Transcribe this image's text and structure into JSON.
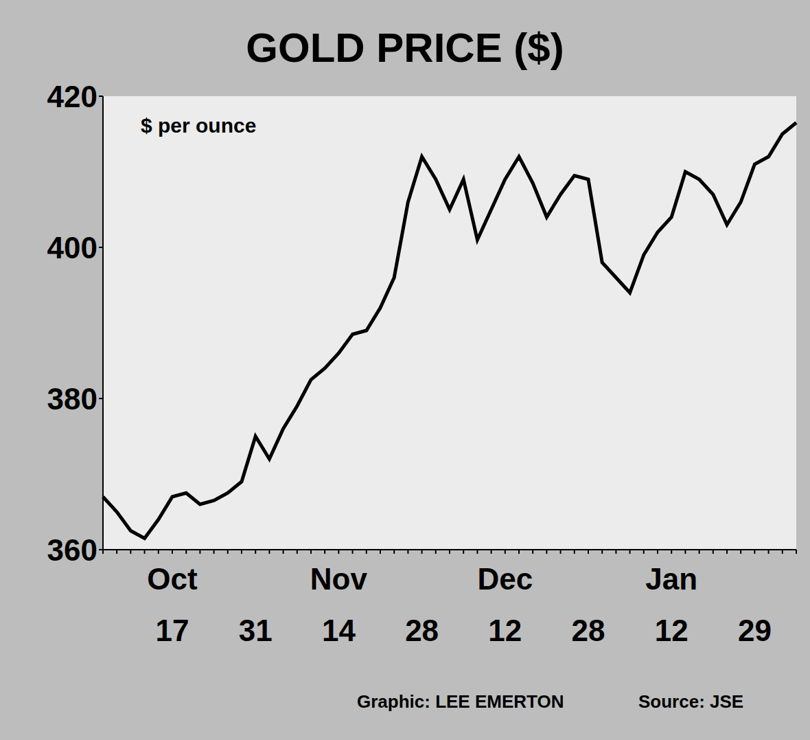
{
  "chart_data": {
    "type": "line",
    "title": "GOLD PRICE ($)",
    "ylabel": "$ per ounce",
    "credit": "Graphic: LEE EMERTON",
    "source": "Source: JSE",
    "categories": [
      null,
      null,
      null,
      null,
      null,
      "Oct 17",
      null,
      null,
      null,
      null,
      null,
      "31",
      null,
      null,
      null,
      null,
      null,
      "Nov 14",
      null,
      null,
      null,
      null,
      null,
      "28",
      null,
      null,
      null,
      null,
      null,
      "Dec 12",
      null,
      null,
      null,
      null,
      null,
      "28",
      null,
      null,
      null,
      null,
      null,
      "Jan 12",
      null,
      null,
      null,
      null,
      null,
      "29",
      null,
      null,
      null
    ],
    "values": [
      367,
      365,
      362.5,
      361.5,
      364,
      367,
      367.5,
      366,
      366.5,
      367.5,
      369,
      375,
      372,
      376,
      379,
      382.5,
      384,
      386,
      388.5,
      389,
      392,
      396,
      406,
      412,
      409,
      405,
      409,
      401,
      405,
      409,
      412,
      408.5,
      404,
      407,
      409.5,
      409,
      398,
      396,
      394,
      399,
      402,
      404,
      410,
      409,
      407,
      403,
      406,
      411,
      412,
      415,
      416.5
    ],
    "color": "#000000",
    "ylim": [
      360,
      420
    ],
    "yticks": [
      360,
      380,
      400,
      420
    ],
    "grid": false
  }
}
